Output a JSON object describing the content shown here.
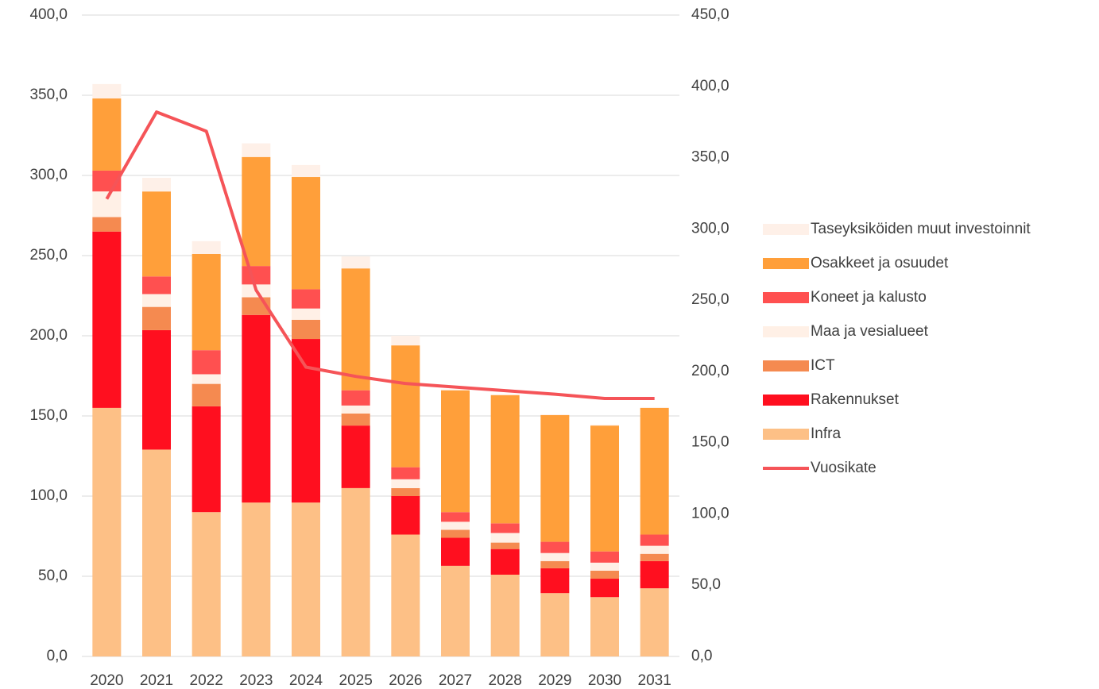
{
  "chart_data": {
    "type": "bar",
    "categories": [
      "2020",
      "2021",
      "2022",
      "2023",
      "2024",
      "2025",
      "2026",
      "2027",
      "2028",
      "2029",
      "2030",
      "2031"
    ],
    "series": [
      {
        "name": "Infra",
        "color": "#FDC086",
        "values": [
          155,
          129,
          90,
          96,
          96,
          105,
          76,
          56.5,
          51,
          39.5,
          37,
          42.5
        ]
      },
      {
        "name": "Rakennukset",
        "color": "#FF0F1F",
        "values": [
          110,
          74.5,
          66,
          117,
          102,
          39,
          24,
          17.5,
          16,
          15.5,
          11.5,
          17
        ]
      },
      {
        "name": "ICT",
        "color": "#F58A50",
        "values": [
          9,
          14.5,
          14,
          11,
          12,
          7.5,
          5,
          5,
          4,
          4.5,
          5,
          4.5
        ]
      },
      {
        "name": "Maa ja vesialueet",
        "color": "#FFF0E6",
        "values": [
          16,
          8,
          6,
          8,
          7,
          5,
          5.5,
          5,
          6,
          5,
          5,
          5
        ]
      },
      {
        "name": "Koneet ja kalusto",
        "color": "#FF5050",
        "values": [
          13,
          11,
          15,
          11.5,
          12,
          9.5,
          7.5,
          6,
          6,
          7,
          7,
          7
        ]
      },
      {
        "name": "Osakkeet ja osuudet",
        "color": "#FF9F3A",
        "values": [
          45,
          53,
          60,
          68,
          70,
          76,
          76,
          76,
          80,
          79,
          78.5,
          79
        ]
      },
      {
        "name": "Taseyksiköiden muut investoinnit",
        "color": "#FEF0E8",
        "values": [
          9,
          8.5,
          8,
          8.5,
          7.5,
          7.5,
          6,
          0.5,
          0.5,
          0.5,
          0.5,
          0.5
        ]
      },
      {
        "name": "Vuosikate",
        "color": "#F55458",
        "type": "line",
        "axis": "y2",
        "values": [
          321,
          382,
          368.5,
          257,
          203,
          196.5,
          191.5,
          189,
          186.5,
          184,
          181,
          181
        ]
      }
    ],
    "ylim": [
      0,
      400
    ],
    "yticks": [
      {
        "value": 0,
        "label": "0,0"
      },
      {
        "value": 50,
        "label": "50,0"
      },
      {
        "value": 100,
        "label": "100,0"
      },
      {
        "value": 150,
        "label": "150,0"
      },
      {
        "value": 200,
        "label": "200,0"
      },
      {
        "value": 250,
        "label": "250,0"
      },
      {
        "value": 300,
        "label": "300,0"
      },
      {
        "value": 350,
        "label": "350,0"
      },
      {
        "value": 400,
        "label": "400,0"
      }
    ],
    "y2lim": [
      0,
      450
    ],
    "y2ticks": [
      {
        "value": 0,
        "label": "0,0"
      },
      {
        "value": 50,
        "label": "50,0"
      },
      {
        "value": 100,
        "label": "100,0"
      },
      {
        "value": 150,
        "label": "150,0"
      },
      {
        "value": 200,
        "label": "200,0"
      },
      {
        "value": 250,
        "label": "250,0"
      },
      {
        "value": 300,
        "label": "300,0"
      },
      {
        "value": 350,
        "label": "350,0"
      },
      {
        "value": 400,
        "label": "400,0"
      },
      {
        "value": 450,
        "label": "450,0"
      }
    ],
    "grid": true,
    "legend": "right"
  }
}
